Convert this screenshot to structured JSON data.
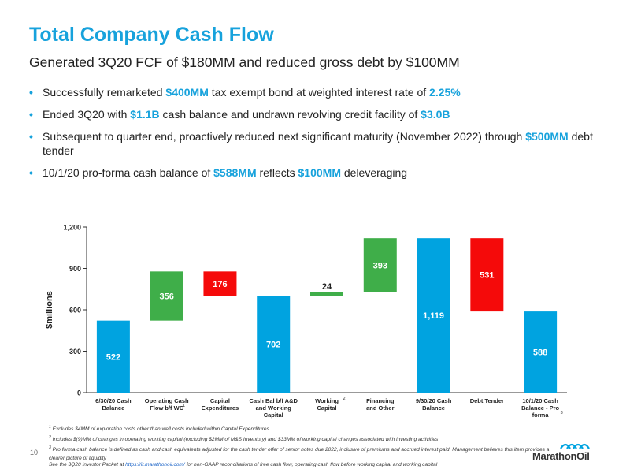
{
  "header": {
    "title": "Total Company Cash Flow",
    "subtitle": "Generated 3Q20 FCF of $180MM and reduced gross debt by $100MM"
  },
  "bullets": [
    [
      {
        "t": "Successfully remarketed "
      },
      {
        "t": "$400MM",
        "hl": true
      },
      {
        "t": " tax exempt bond at weighted interest rate of "
      },
      {
        "t": "2.25%",
        "hl": true
      }
    ],
    [
      {
        "t": "Ended 3Q20 with "
      },
      {
        "t": "$1.1B",
        "hl": true
      },
      {
        "t": " cash balance and undrawn revolving credit facility of "
      },
      {
        "t": "$3.0B",
        "hl": true
      }
    ],
    [
      {
        "t": "Subsequent to quarter end, proactively reduced next significant maturity (November 2022) through "
      },
      {
        "t": "$500MM",
        "hl": true
      },
      {
        "t": " debt tender"
      }
    ],
    [
      {
        "t": "10/1/20 pro-forma cash balance of "
      },
      {
        "t": "$588MM",
        "hl": true
      },
      {
        "t": " reflects "
      },
      {
        "t": "$100MM",
        "hl": true
      },
      {
        "t": " deleveraging"
      }
    ]
  ],
  "chart_data": {
    "type": "bar",
    "subtype": "waterfall",
    "ylabel": "$millions",
    "ylim": [
      0,
      1200
    ],
    "yticks": [
      "0",
      "300",
      "600",
      "900",
      "1,200"
    ],
    "ytick_values": [
      0,
      300,
      600,
      900,
      1200
    ],
    "grid": false,
    "bars": [
      {
        "label_lines": [
          "6/30/20 Cash",
          "Balance"
        ],
        "sup": "",
        "base": 0,
        "value": 522,
        "label": "522",
        "kind": "total",
        "color": "#00a3e0"
      },
      {
        "label_lines": [
          "Operating Cash",
          "Flow b/f WC"
        ],
        "sup": "1",
        "base": 522,
        "value": 356,
        "label": "356",
        "kind": "increase",
        "color": "#3fae49"
      },
      {
        "label_lines": [
          "Capital",
          "Expenditures"
        ],
        "sup": "",
        "base": 702,
        "value": 176,
        "label": "176",
        "kind": "decrease",
        "color": "#f50a0a"
      },
      {
        "label_lines": [
          "Cash Bal b/f A&D",
          "and Working",
          "Capital"
        ],
        "sup": "",
        "base": 0,
        "value": 702,
        "label": "702",
        "kind": "total",
        "color": "#00a3e0"
      },
      {
        "label_lines": [
          "Working",
          "Capital"
        ],
        "sup": "2",
        "base": 702,
        "value": 24,
        "label": "24",
        "kind": "increase",
        "color": "#3fae49"
      },
      {
        "label_lines": [
          "Financing",
          "and Other"
        ],
        "sup": "",
        "base": 726,
        "value": 393,
        "label": "393",
        "kind": "increase",
        "color": "#3fae49"
      },
      {
        "label_lines": [
          "9/30/20 Cash",
          "Balance"
        ],
        "sup": "",
        "base": 0,
        "value": 1119,
        "label": "1,119",
        "kind": "total",
        "color": "#00a3e0"
      },
      {
        "label_lines": [
          "Debt Tender"
        ],
        "sup": "",
        "base": 588,
        "value": 531,
        "label": "531",
        "kind": "decrease",
        "color": "#f50a0a"
      },
      {
        "label_lines": [
          "10/1/20 Cash",
          "Balance - Pro",
          "forma"
        ],
        "sup": "3",
        "base": 0,
        "value": 588,
        "label": "588",
        "kind": "total",
        "color": "#00a3e0"
      }
    ]
  },
  "footnotes": [
    {
      "num": "1",
      "text": "Excludes $4MM of exploration costs other than well costs included within Capital Expenditures"
    },
    {
      "num": "2",
      "text": "Includes $(9)MM of changes in operating working capital (excluding $2MM of M&S Inventory) and $33MM of working capital changes associated with investing activities"
    },
    {
      "num": "3",
      "text": "Pro forma cash balance is defined as cash and cash equivalents adjusted for the cash tender offer of senior notes due 2022, inclusive of premiums and accrued interest paid. Management believes this item provides a clearer picture of liquidity"
    }
  ],
  "investor_note": {
    "prefix": "See the 3Q20 Investor Packet at ",
    "link": "https://ir.marathonoil.com/",
    "suffix": " for non-GAAP reconciliations of free cash flow, operating cash flow before working capital and working capital"
  },
  "page_number": "10",
  "logo": {
    "text": "MarathonOil",
    "mark_color": "#00a3e0"
  }
}
